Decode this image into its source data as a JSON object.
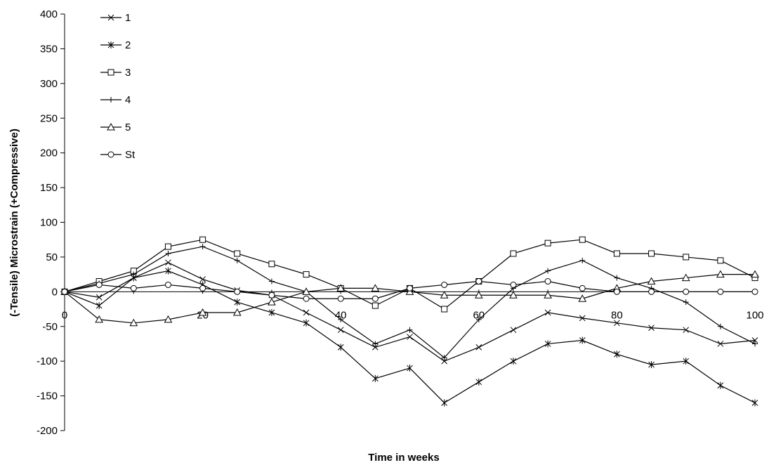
{
  "chart_data": {
    "type": "line",
    "title": "",
    "xlabel": "Time in weeks",
    "ylabel": "(-Tensile) Microstrain (+Compressive)",
    "xlim": [
      0,
      100
    ],
    "ylim": [
      -200,
      400
    ],
    "x_ticks": [
      0,
      20,
      40,
      60,
      80,
      100
    ],
    "y_ticks": [
      -200,
      -150,
      -100,
      -50,
      0,
      50,
      100,
      150,
      200,
      250,
      300,
      350,
      400
    ],
    "grid": false,
    "legend_position": "top-left",
    "x": [
      0,
      5,
      10,
      15,
      20,
      25,
      30,
      35,
      40,
      45,
      50,
      55,
      60,
      65,
      70,
      75,
      80,
      85,
      90,
      95,
      100
    ],
    "series": [
      {
        "name": "1",
        "marker": "x",
        "values": [
          0,
          -8,
          20,
          42,
          18,
          2,
          -5,
          -30,
          -55,
          -80,
          -65,
          -100,
          -80,
          -55,
          -30,
          -38,
          -45,
          -52,
          -55,
          -75,
          -70
        ]
      },
      {
        "name": "2",
        "marker": "asterisk",
        "values": [
          0,
          -20,
          20,
          30,
          10,
          -15,
          -30,
          -45,
          -80,
          -125,
          -110,
          -160,
          -130,
          -100,
          -75,
          -70,
          -90,
          -105,
          -100,
          -135,
          -160
        ]
      },
      {
        "name": "3",
        "marker": "square",
        "values": [
          0,
          15,
          30,
          65,
          75,
          55,
          40,
          25,
          5,
          -20,
          5,
          -25,
          15,
          55,
          70,
          75,
          55,
          55,
          50,
          45,
          20
        ]
      },
      {
        "name": "4",
        "marker": "plus",
        "values": [
          0,
          12,
          25,
          55,
          65,
          45,
          15,
          0,
          -40,
          -75,
          -55,
          -95,
          -40,
          5,
          30,
          45,
          20,
          5,
          -15,
          -50,
          -75
        ]
      },
      {
        "name": "5",
        "marker": "triangle",
        "values": [
          0,
          -40,
          -45,
          -40,
          -30,
          -30,
          -15,
          0,
          5,
          5,
          0,
          -5,
          -5,
          -5,
          -5,
          -10,
          5,
          15,
          20,
          25,
          25
        ]
      },
      {
        "name": "St",
        "marker": "circle",
        "values": [
          0,
          10,
          5,
          10,
          5,
          0,
          -5,
          -10,
          -10,
          -10,
          5,
          10,
          15,
          10,
          15,
          5,
          0,
          0,
          0,
          0,
          0
        ]
      }
    ]
  }
}
